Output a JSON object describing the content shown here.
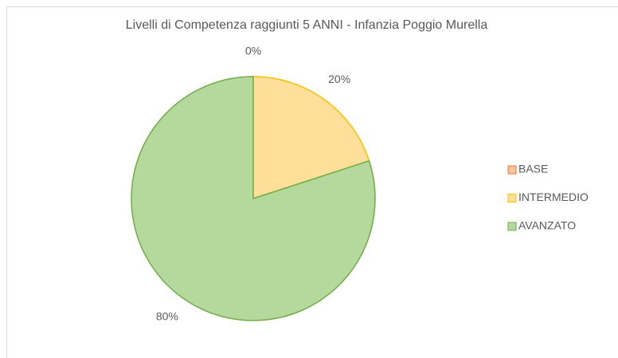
{
  "chart_data": {
    "type": "pie",
    "title": "Livelli di Competenza raggiunti 5 ANNI - Infanzia Poggio Murella",
    "categories": [
      "BASE",
      "INTERMEDIO",
      "AVANZATO"
    ],
    "values": [
      0,
      20,
      80
    ],
    "value_labels": [
      "0%",
      "20%",
      "80%"
    ],
    "colors": [
      "#f8c3a0",
      "#ffdf9a",
      "#b5d89c"
    ],
    "edge_colors": [
      "#ed7d31",
      "#ffc000",
      "#70ad47"
    ],
    "legend": "right"
  }
}
